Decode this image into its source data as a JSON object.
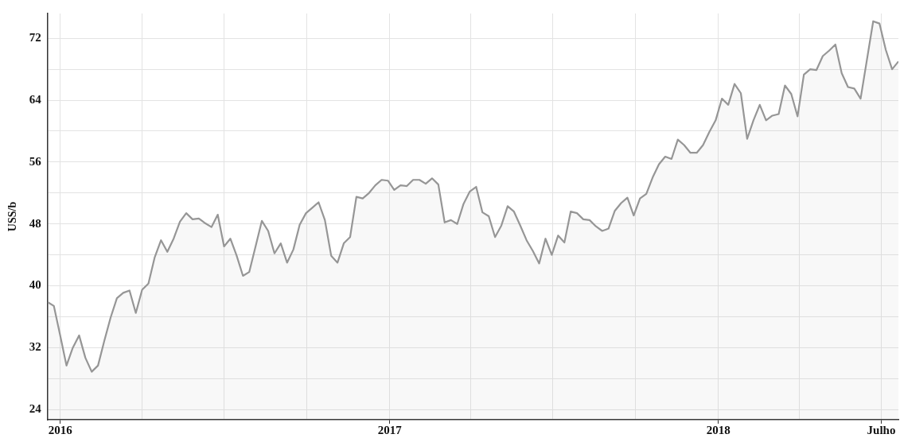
{
  "chart_data": {
    "type": "area",
    "ylabel": "USS/b",
    "grid": true,
    "legend": false,
    "marker": "none",
    "line_style": "solid",
    "xlim": [
      "2015-12-18",
      "2018-07-20"
    ],
    "xticks": [
      {
        "value": "2016-01-01",
        "label": "2016"
      },
      {
        "value": "2016-04-01",
        "label": null
      },
      {
        "value": "2016-07-01",
        "label": null
      },
      {
        "value": "2016-10-01",
        "label": null
      },
      {
        "value": "2017-01-01",
        "label": "2017"
      },
      {
        "value": "2017-04-01",
        "label": null
      },
      {
        "value": "2017-07-01",
        "label": null
      },
      {
        "value": "2017-10-01",
        "label": null
      },
      {
        "value": "2018-01-01",
        "label": "2018"
      },
      {
        "value": "2018-04-01",
        "label": null
      },
      {
        "value": "2018-07-01",
        "label": "Julho"
      }
    ],
    "ylim": [
      22.7,
      75.2
    ],
    "yticks": [
      24,
      {
        "value": 28,
        "label": null
      },
      32,
      {
        "value": 36,
        "label": null
      },
      40,
      {
        "value": 44,
        "label": null
      },
      48,
      {
        "value": 52,
        "label": null
      },
      56,
      {
        "value": 60,
        "label": null
      },
      64,
      {
        "value": 68,
        "label": null
      },
      72
    ],
    "x": [
      "2015-12-18",
      "2015-12-25",
      "2016-01-01",
      "2016-01-08",
      "2016-01-15",
      "2016-01-22",
      "2016-01-29",
      "2016-02-05",
      "2016-02-12",
      "2016-02-19",
      "2016-02-26",
      "2016-03-04",
      "2016-03-11",
      "2016-03-18",
      "2016-03-25",
      "2016-04-01",
      "2016-04-08",
      "2016-04-15",
      "2016-04-22",
      "2016-04-29",
      "2016-05-06",
      "2016-05-13",
      "2016-05-20",
      "2016-05-27",
      "2016-06-03",
      "2016-06-10",
      "2016-06-17",
      "2016-06-24",
      "2016-07-01",
      "2016-07-08",
      "2016-07-15",
      "2016-07-22",
      "2016-07-29",
      "2016-08-05",
      "2016-08-12",
      "2016-08-19",
      "2016-08-26",
      "2016-09-02",
      "2016-09-09",
      "2016-09-16",
      "2016-09-23",
      "2016-09-30",
      "2016-10-07",
      "2016-10-14",
      "2016-10-21",
      "2016-10-28",
      "2016-11-04",
      "2016-11-11",
      "2016-11-18",
      "2016-11-25",
      "2016-12-02",
      "2016-12-09",
      "2016-12-16",
      "2016-12-23",
      "2016-12-30",
      "2017-01-06",
      "2017-01-13",
      "2017-01-20",
      "2017-01-27",
      "2017-02-03",
      "2017-02-10",
      "2017-02-17",
      "2017-02-24",
      "2017-03-03",
      "2017-03-10",
      "2017-03-17",
      "2017-03-24",
      "2017-03-31",
      "2017-04-07",
      "2017-04-14",
      "2017-04-21",
      "2017-04-28",
      "2017-05-05",
      "2017-05-12",
      "2017-05-19",
      "2017-05-26",
      "2017-06-02",
      "2017-06-09",
      "2017-06-16",
      "2017-06-23",
      "2017-06-30",
      "2017-07-07",
      "2017-07-14",
      "2017-07-21",
      "2017-07-28",
      "2017-08-04",
      "2017-08-11",
      "2017-08-18",
      "2017-08-25",
      "2017-09-01",
      "2017-09-08",
      "2017-09-15",
      "2017-09-22",
      "2017-09-29",
      "2017-10-06",
      "2017-10-13",
      "2017-10-20",
      "2017-10-27",
      "2017-11-03",
      "2017-11-10",
      "2017-11-17",
      "2017-11-24",
      "2017-12-01",
      "2017-12-08",
      "2017-12-15",
      "2017-12-22",
      "2017-12-29",
      "2018-01-05",
      "2018-01-12",
      "2018-01-19",
      "2018-01-26",
      "2018-02-02",
      "2018-02-09",
      "2018-02-16",
      "2018-02-23",
      "2018-03-02",
      "2018-03-09",
      "2018-03-16",
      "2018-03-23",
      "2018-03-30",
      "2018-04-06",
      "2018-04-13",
      "2018-04-20",
      "2018-04-27",
      "2018-05-04",
      "2018-05-11",
      "2018-05-18",
      "2018-05-25",
      "2018-06-01",
      "2018-06-08",
      "2018-06-15",
      "2018-06-22",
      "2018-06-29",
      "2018-07-06",
      "2018-07-13",
      "2018-07-20"
    ],
    "series": [
      {
        "color": "#969696",
        "values": [
          37.9,
          37.4,
          33.6,
          29.7,
          32.0,
          33.6,
          30.7,
          28.9,
          29.7,
          32.9,
          35.9,
          38.4,
          39.1,
          39.4,
          36.5,
          39.5,
          40.3,
          43.7,
          45.9,
          44.4,
          46.1,
          48.3,
          49.4,
          48.6,
          48.7,
          48.1,
          47.6,
          49.2,
          45.1,
          46.1,
          43.9,
          41.3,
          41.8,
          45.1,
          48.4,
          47.1,
          44.2,
          45.5,
          43.0,
          44.7,
          47.9,
          49.4,
          50.1,
          50.8,
          48.5,
          43.9,
          43.0,
          45.5,
          46.3,
          51.5,
          51.3,
          52.0,
          53.0,
          53.7,
          53.6,
          52.4,
          53.0,
          52.9,
          53.7,
          53.7,
          53.2,
          53.9,
          53.1,
          48.2,
          48.5,
          48.0,
          50.6,
          52.2,
          52.8,
          49.5,
          49.0,
          46.3,
          47.8,
          50.3,
          49.6,
          47.8,
          45.9,
          44.5,
          42.9,
          46.1,
          44.0,
          46.5,
          45.6,
          49.6,
          49.4,
          48.6,
          48.5,
          47.7,
          47.1,
          47.4,
          49.7,
          50.7,
          51.4,
          49.1,
          51.3,
          51.9,
          54.0,
          55.7,
          56.7,
          56.4,
          58.9,
          58.2,
          57.2,
          57.2,
          58.2,
          59.9,
          61.4,
          64.2,
          63.4,
          66.1,
          64.9,
          59.0,
          61.4,
          63.4,
          61.4,
          62.0,
          62.2,
          65.9,
          64.8,
          61.9,
          67.3,
          68.0,
          67.9,
          69.7,
          70.4,
          71.2,
          67.5,
          65.7,
          65.5,
          64.2,
          69.2,
          74.2,
          73.9,
          70.5,
          68.0,
          69.0
        ]
      }
    ]
  }
}
